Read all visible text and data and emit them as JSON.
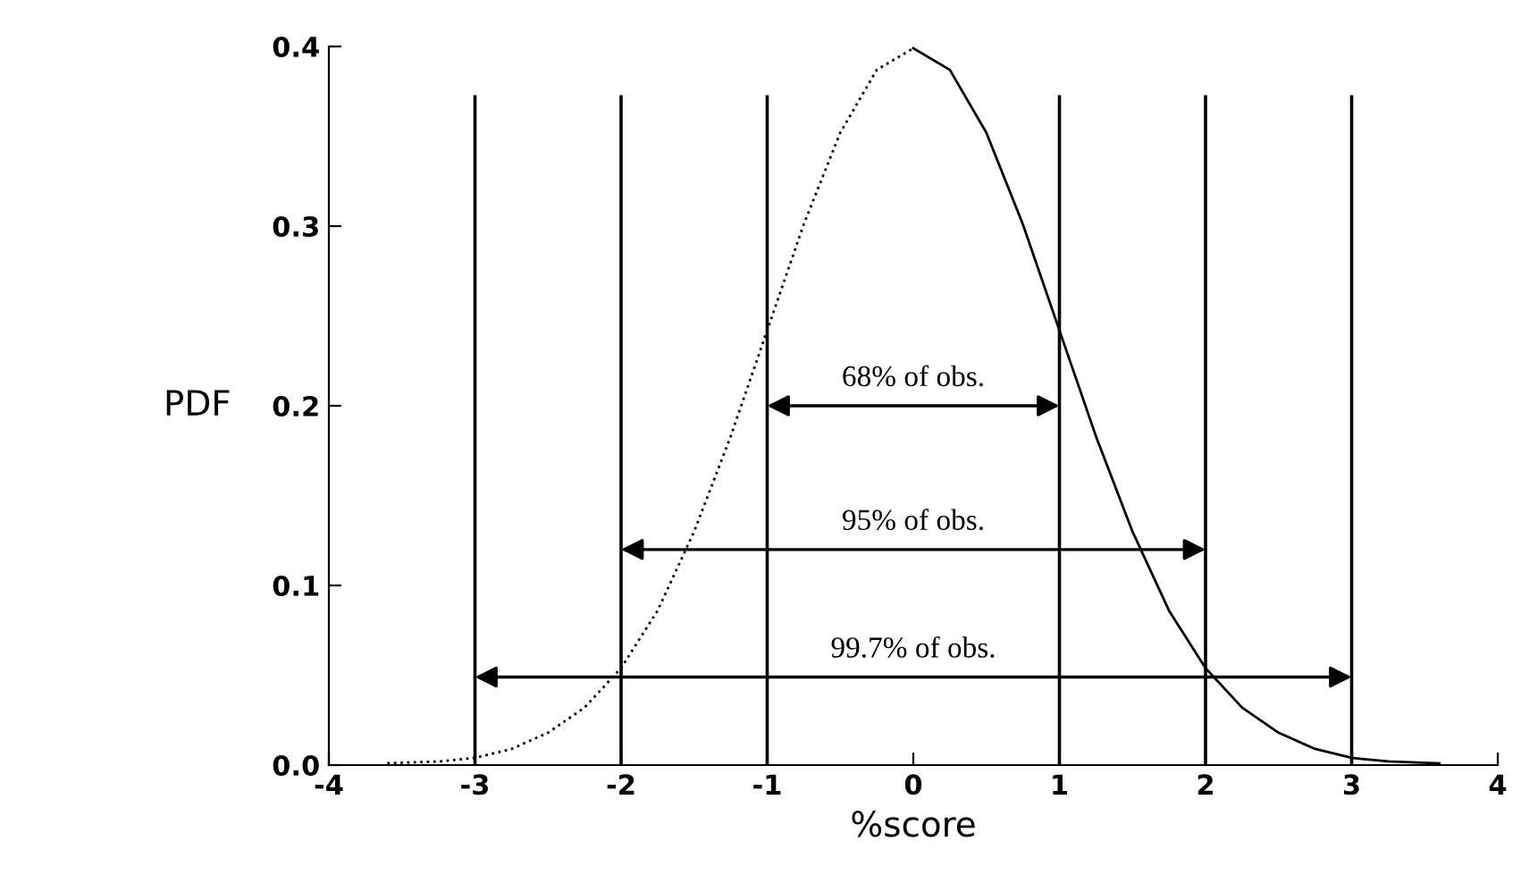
{
  "chart_data": {
    "type": "line",
    "xlabel": "%score",
    "ylabel": "PDF",
    "series": [
      {
        "color": "#000000",
        "line_style": "dotted",
        "x": [
          -3.6,
          -3.25,
          -3,
          -2.75,
          -2.5,
          -2.25,
          -2,
          -1.75,
          -1.5,
          -1.25,
          -1,
          -0.75,
          -0.5,
          -0.25,
          0
        ],
        "values": [
          0.001,
          0.002,
          0.004,
          0.009,
          0.018,
          0.032,
          0.054,
          0.086,
          0.13,
          0.183,
          0.242,
          0.301,
          0.352,
          0.387,
          0.399
        ]
      },
      {
        "color": "#000000",
        "line_style": "solid",
        "x": [
          0,
          0.25,
          0.5,
          0.75,
          1,
          1.25,
          1.5,
          1.75,
          2,
          2.25,
          2.5,
          2.75,
          3,
          3.25,
          3.6
        ],
        "values": [
          0.399,
          0.387,
          0.352,
          0.301,
          0.242,
          0.183,
          0.13,
          0.086,
          0.054,
          0.032,
          0.018,
          0.009,
          0.004,
          0.002,
          0.001
        ]
      }
    ],
    "xlim": [
      -4,
      4
    ],
    "ylim": [
      0,
      0.4
    ],
    "xticks": [
      -4,
      -3,
      -2,
      -1,
      0,
      1,
      2,
      3,
      4
    ],
    "yticks": [
      {
        "value": 0,
        "label": "0.0"
      },
      0.1,
      0.2,
      0.3,
      0.4
    ],
    "ref_lines": [
      {
        "axis": "x",
        "value": -3,
        "color": "#000000"
      },
      {
        "axis": "x",
        "value": -2,
        "color": "#000000"
      },
      {
        "axis": "x",
        "value": -1,
        "color": "#000000"
      },
      {
        "axis": "x",
        "value": 1,
        "color": "#000000"
      },
      {
        "axis": "x",
        "value": 2,
        "color": "#000000"
      },
      {
        "axis": "x",
        "value": 3,
        "color": "#000000"
      }
    ],
    "annotations": [
      "68% of obs.",
      "95% of obs.",
      "99.7% of obs."
    ],
    "grid": false,
    "legend": false,
    "marker": "none"
  }
}
